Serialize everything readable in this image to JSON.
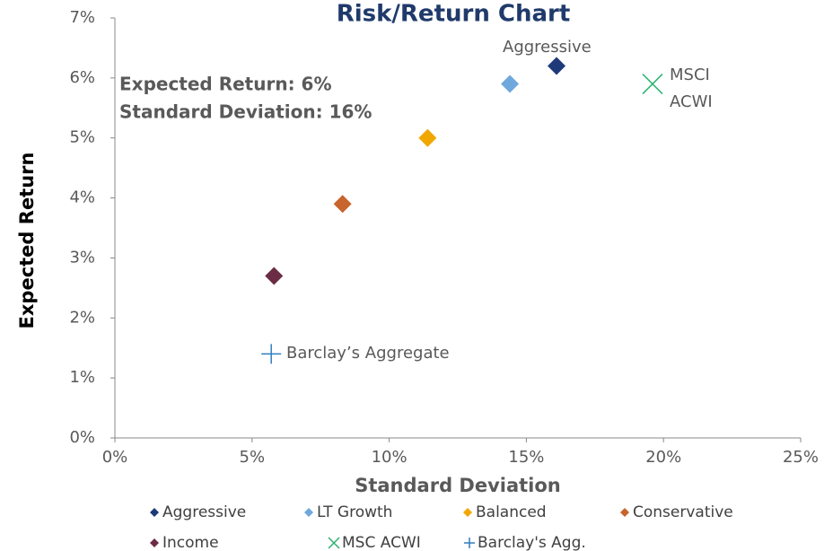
{
  "chart_data": {
    "type": "scatter",
    "title": "Risk/Return Chart",
    "x_label": "Standard Deviation",
    "y_label": "Expected Return",
    "xlim": [
      0,
      25
    ],
    "ylim": [
      0,
      7
    ],
    "xticks": [
      {
        "value": 0,
        "label": "0%"
      },
      {
        "value": 5,
        "label": "5%"
      },
      {
        "value": 10,
        "label": "10%"
      },
      {
        "value": 15,
        "label": "15%"
      },
      {
        "value": 20,
        "label": "20%"
      },
      {
        "value": 25,
        "label": "25%"
      }
    ],
    "yticks": [
      {
        "value": 0,
        "label": "0%"
      },
      {
        "value": 1,
        "label": "1%"
      },
      {
        "value": 2,
        "label": "2%"
      },
      {
        "value": 3,
        "label": "3%"
      },
      {
        "value": 4,
        "label": "4%"
      },
      {
        "value": 5,
        "label": "5%"
      },
      {
        "value": 6,
        "label": "6%"
      },
      {
        "value": 7,
        "label": "7%"
      }
    ],
    "grid": false,
    "series": [
      {
        "name": "Aggressive",
        "color": "#1f3a7a",
        "marker": "diamond",
        "x": [
          16.1
        ],
        "values": [
          6.2
        ]
      },
      {
        "name": "LT Growth",
        "color": "#6fa8dc",
        "marker": "diamond",
        "x": [
          14.4
        ],
        "values": [
          5.9
        ]
      },
      {
        "name": "Balanced",
        "color": "#f0a800",
        "marker": "diamond",
        "x": [
          11.4
        ],
        "values": [
          5.0
        ]
      },
      {
        "name": "Conservative",
        "color": "#c8642d",
        "marker": "diamond",
        "x": [
          8.3
        ],
        "values": [
          3.9
        ]
      },
      {
        "name": "Income",
        "color": "#6b2d45",
        "marker": "diamond",
        "x": [
          5.8
        ],
        "values": [
          2.7
        ]
      },
      {
        "name": "MSC ACWI",
        "color": "#2db36f",
        "marker": "x",
        "x": [
          19.6
        ],
        "values": [
          5.9
        ]
      },
      {
        "name": "Barclay's Agg.",
        "color": "#2e7fc0",
        "marker": "plus",
        "x": [
          5.7
        ],
        "values": [
          1.4
        ]
      }
    ],
    "annotations": [
      "Aggressive",
      "MSCI",
      "ACWI",
      "Barclay’s Aggregate",
      "Expected Return: 6%",
      "Standard Deviation: 16%"
    ],
    "legend": "bottom"
  }
}
